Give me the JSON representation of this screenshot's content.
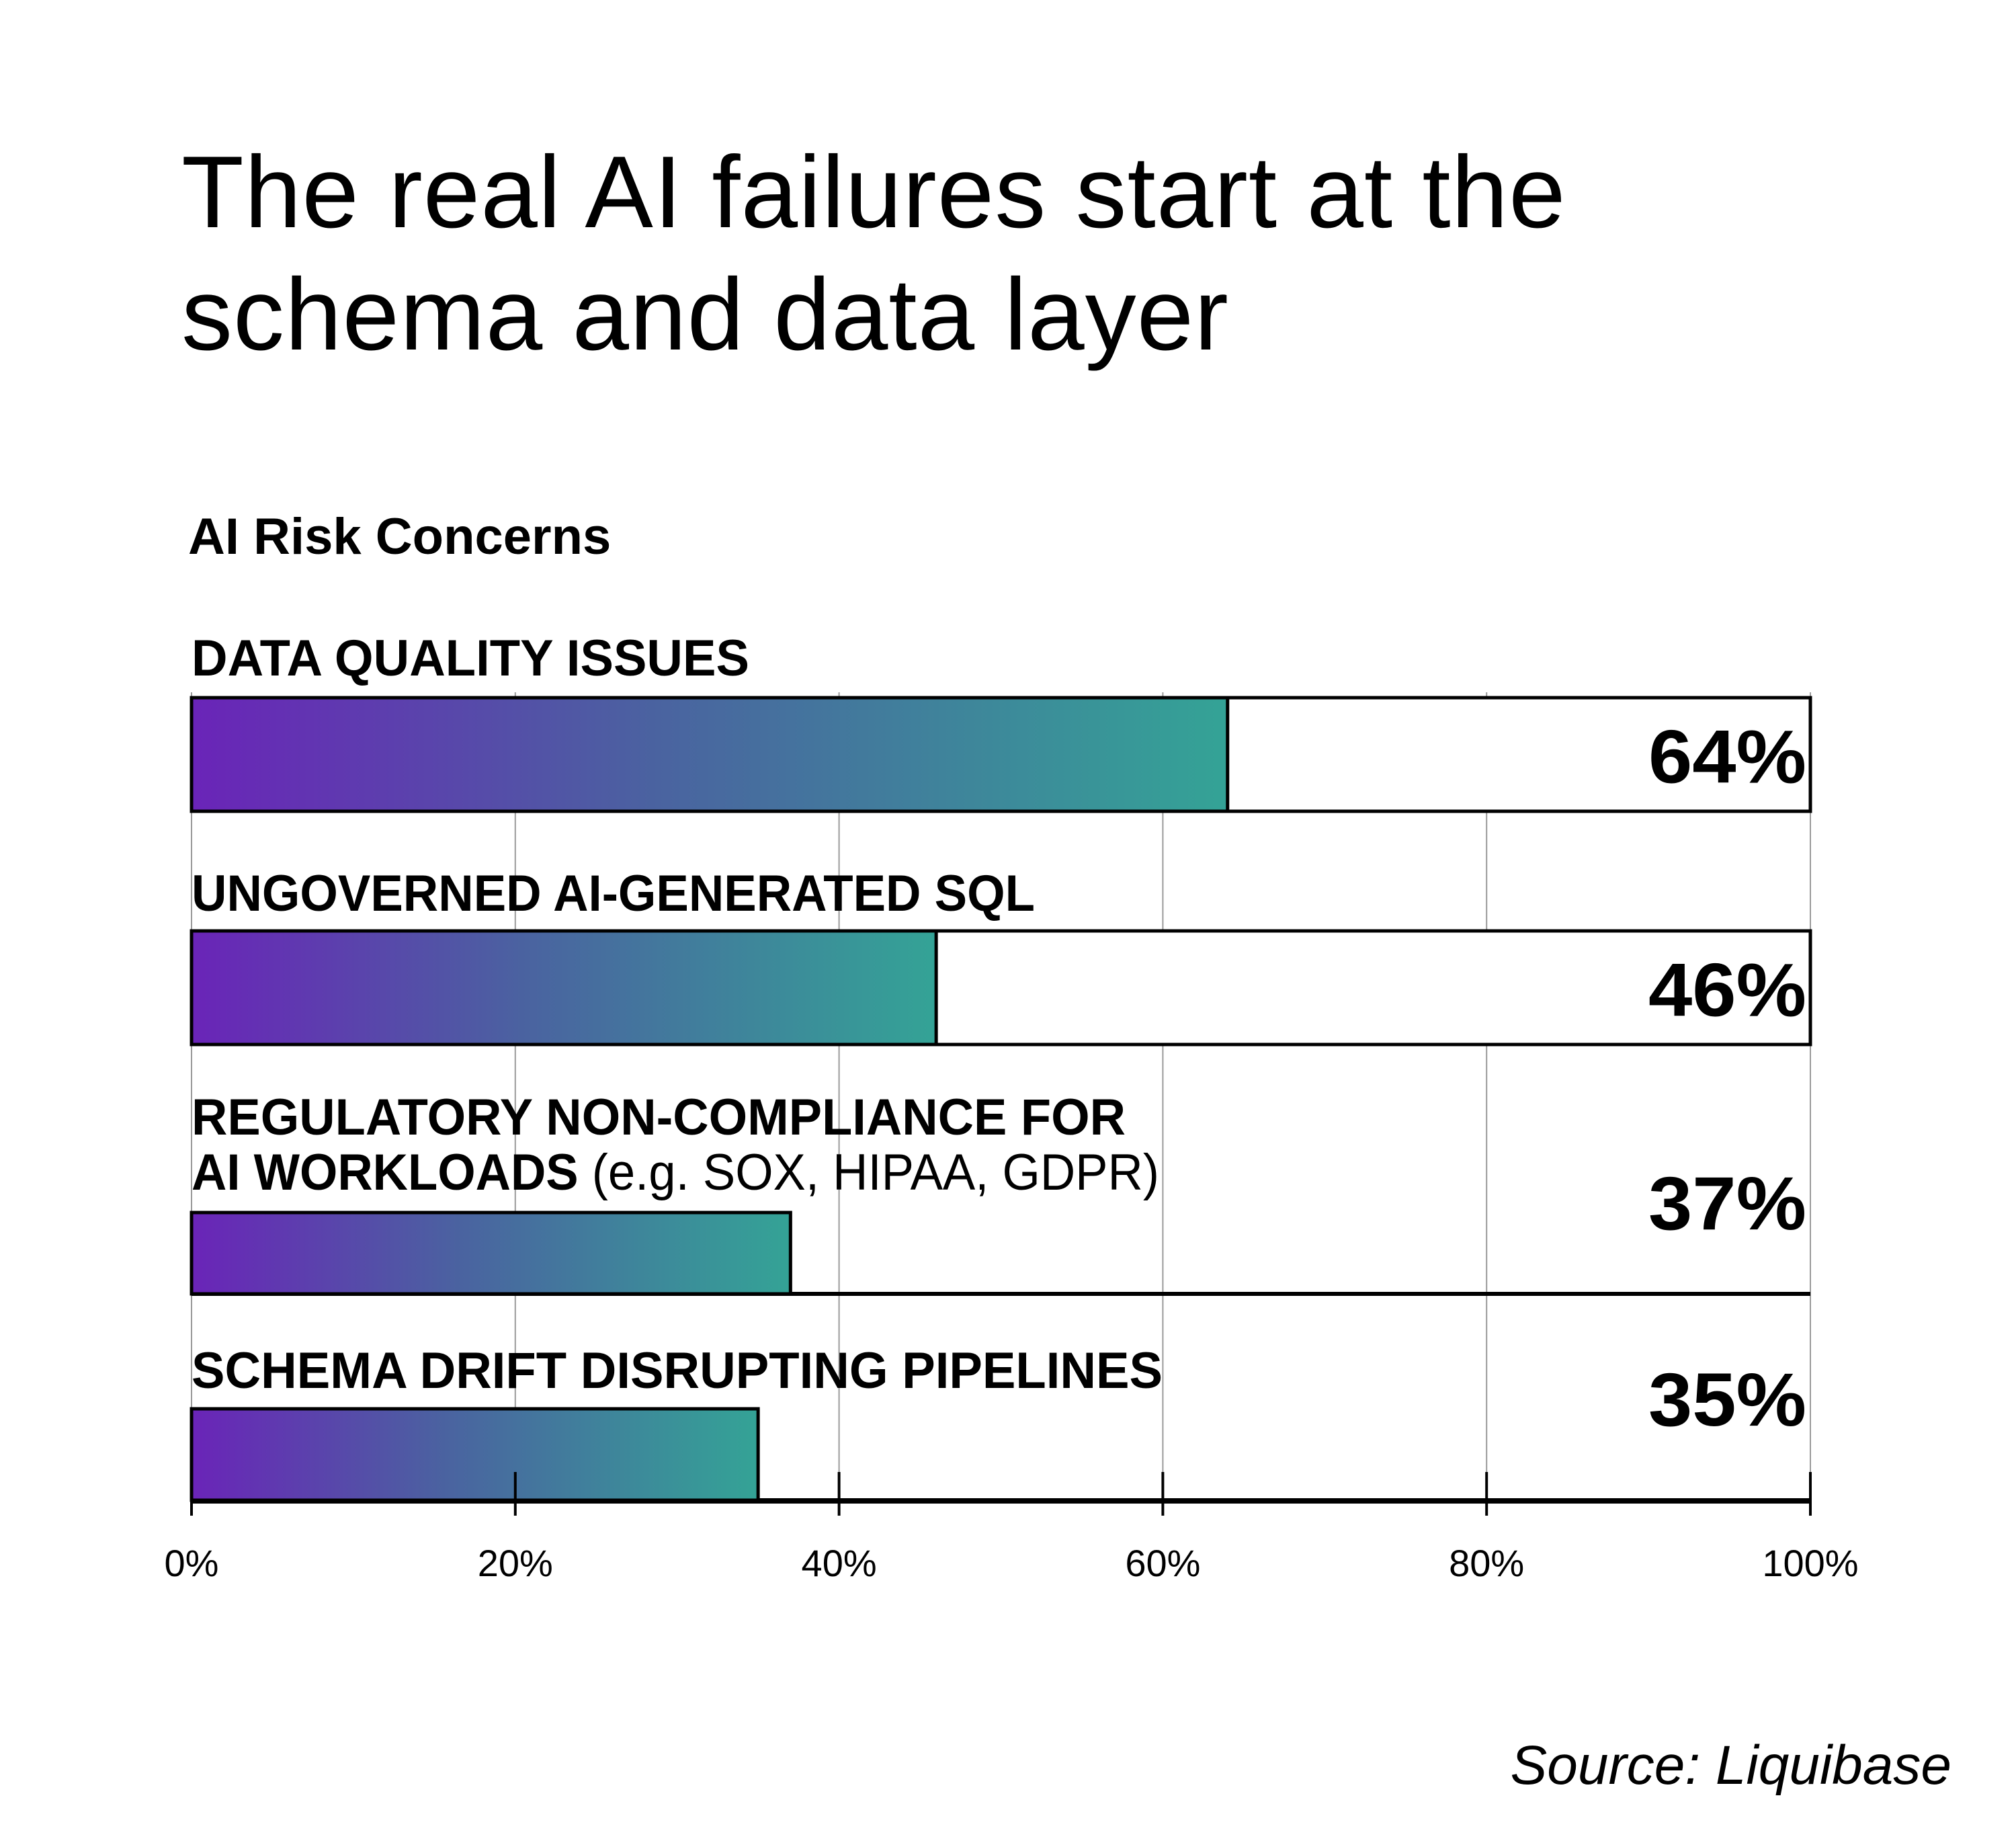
{
  "header": {
    "title_line1": "The real AI failures start at the",
    "title_line2": "schema and data layer"
  },
  "source": "Source: Liquibase",
  "colors": {
    "bar_start": "#6a24b8",
    "bar_mid": "#4a63a0",
    "bar_end": "#34a396",
    "axis": "#000000",
    "grid": "#9a9a9a"
  },
  "chart_data": {
    "type": "bar",
    "orientation": "horizontal",
    "title": "AI Risk Concerns",
    "categories": [
      {
        "label": "DATA QUALITY ISSUES",
        "note": ""
      },
      {
        "label": "UNGOVERNED AI-GENERATED SQL",
        "note": ""
      },
      {
        "label": "REGULATORY NON-COMPLIANCE FOR",
        "label2": "AI WORKLOADS",
        "note": "(e.g. SOX, HIPAA, GDPR)"
      },
      {
        "label": "SCHEMA DRIFT DISRUPTING PIPELINES",
        "note": ""
      }
    ],
    "values": [
      64,
      46,
      37,
      35
    ],
    "value_labels": [
      "64%",
      "46%",
      "37%",
      "35%"
    ],
    "xlim": [
      0,
      100
    ],
    "xticks": [
      0,
      20,
      40,
      60,
      80,
      100
    ],
    "xtick_labels": [
      "0%",
      "20%",
      "40%",
      "60%",
      "80%",
      "100%"
    ],
    "grid": true,
    "xlabel": "",
    "ylabel": ""
  }
}
